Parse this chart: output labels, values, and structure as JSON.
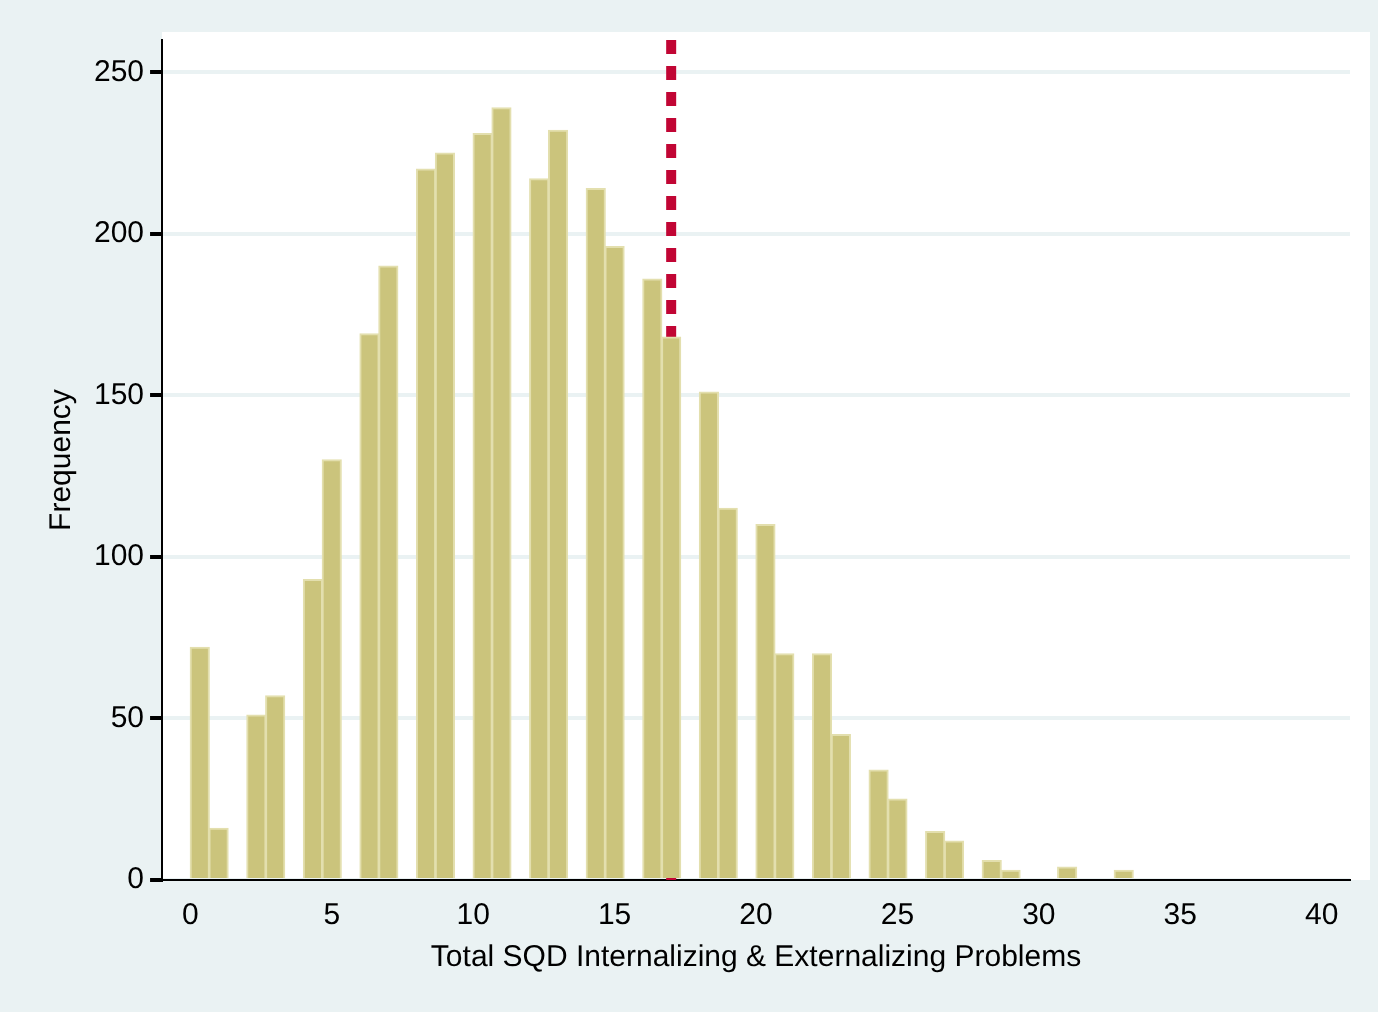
{
  "chart_data": {
    "type": "histogram",
    "xlabel": "Total SQD Internalizing & Externalizing Problems",
    "ylabel": "Frequency",
    "bins": [
      0,
      0.6667,
      1.3333,
      2,
      2.6667,
      3.3333,
      4,
      4.6667,
      5.3333,
      6,
      6.6667,
      7.3333,
      8,
      8.6667,
      9.3333,
      10,
      10.6667,
      11.3333,
      12,
      12.6667,
      13.3333,
      14,
      14.6667,
      15.3333,
      16,
      16.6667,
      17.3333,
      18,
      18.6667,
      19.3333,
      20,
      20.6667,
      21.3333,
      22,
      22.6667,
      23.3333,
      24,
      24.6667,
      25.3333,
      26,
      26.6667,
      27.3333,
      28,
      28.6667,
      29.3333,
      30,
      30.6667,
      31.3333,
      32,
      32.6667,
      33.3333
    ],
    "values": [
      72,
      16,
      0,
      51,
      57,
      0,
      93,
      130,
      0,
      169,
      190,
      0,
      220,
      225,
      0,
      231,
      239,
      0,
      217,
      232,
      0,
      214,
      196,
      0,
      186,
      168,
      0,
      151,
      115,
      0,
      110,
      70,
      0,
      70,
      45,
      0,
      34,
      25,
      0,
      15,
      12,
      0,
      6,
      3,
      0,
      0,
      4,
      0,
      0,
      3
    ],
    "color": "#cbc47c",
    "xlim": [
      -1,
      41
    ],
    "xticks": [
      0,
      5,
      10,
      15,
      20,
      25,
      30,
      35,
      40
    ],
    "ylim": [
      0,
      260
    ],
    "yticks": [
      0,
      50,
      100,
      150,
      200,
      250
    ],
    "grid": "y",
    "legend": false,
    "ref_lines": [
      {
        "axis": "x",
        "value": 17,
        "color": "#c10534",
        "line_style": "dashed"
      }
    ]
  }
}
